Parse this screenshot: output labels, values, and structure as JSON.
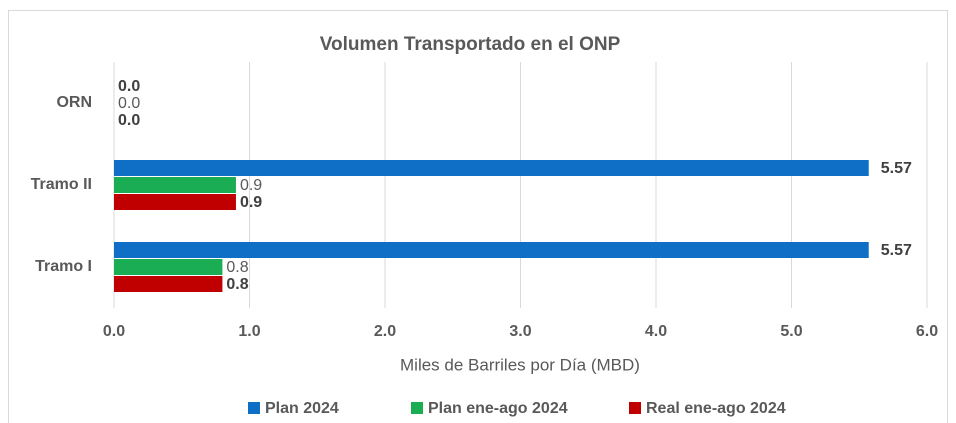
{
  "chart_data": {
    "type": "bar",
    "orientation": "horizontal",
    "title": "Volumen Transportado en el ONP",
    "x_label": "Miles de Barriles por Día (MBD)",
    "categories": [
      "ORN",
      "Tramo II",
      "Tramo I"
    ],
    "series": [
      {
        "name": "Plan 2024",
        "color": "#0f6fc6",
        "values": [
          0,
          5.57,
          5.57
        ],
        "value_labels": [
          "0.0",
          "5.57",
          "5.57"
        ],
        "label_bold": true
      },
      {
        "name": "Plan ene-ago 2024",
        "color": "#1aad54",
        "values": [
          0,
          0.9,
          0.8
        ],
        "value_labels": [
          "0.0",
          "0.9",
          "0.8"
        ],
        "label_bold": false
      },
      {
        "name": "Real ene-ago 2024",
        "color": "#c00000",
        "values": [
          0,
          0.9,
          0.8
        ],
        "value_labels": [
          "0.0",
          "0.9",
          "0.8"
        ],
        "label_bold": true
      }
    ],
    "xlim": [
      0,
      6
    ],
    "xticks": [
      {
        "value": 0,
        "label": "0.0"
      },
      {
        "value": 1,
        "label": "1.0"
      },
      {
        "value": 2,
        "label": "2.0"
      },
      {
        "value": 3,
        "label": "3.0"
      },
      {
        "value": 4,
        "label": "4.0"
      },
      {
        "value": 5,
        "label": "5.0"
      },
      {
        "value": 6,
        "label": "6.0"
      }
    ],
    "grid": true,
    "legend": "bottom"
  }
}
